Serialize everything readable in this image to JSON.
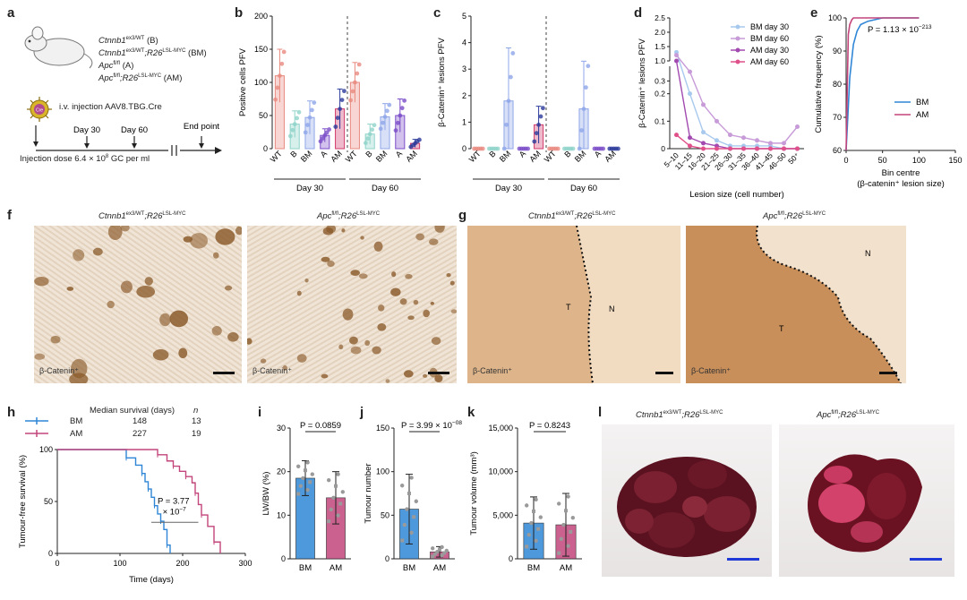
{
  "panel_letters": [
    "a",
    "b",
    "c",
    "d",
    "e",
    "f",
    "g",
    "h",
    "i",
    "j",
    "k",
    "l"
  ],
  "a": {
    "genotypes": [
      {
        "name": "Ctnnb1",
        "sup": "ex3/WT",
        "tag": "(B)"
      },
      {
        "name": "Ctnnb1",
        "sup": "ex3/WT",
        "name2": ";R26",
        "sup2": "LSL-MYC",
        "tag": "(BM)"
      },
      {
        "name": "Apc",
        "sup": "fl/fl",
        "tag": "(A)"
      },
      {
        "name": "Apc",
        "sup": "fl/fl",
        "name2": ";R26",
        "sup2": "LSL-MYC",
        "tag": "(AM)"
      }
    ],
    "injection": "i.v. injection AAV8.TBG.Cre",
    "timeline": [
      "Day 30",
      "Day 60",
      "End point"
    ],
    "dose": "Injection dose 6.4 × 10",
    "dose_exp": "8",
    "dose_unit": " GC per ml",
    "virus_label": "Cre"
  },
  "b": {
    "ylabel": "Positive cells PFV",
    "yticks": [
      "0",
      "50",
      "100",
      "150",
      "200"
    ],
    "groups": [
      "Day 30",
      "Day 60"
    ],
    "categories": [
      "WT",
      "B",
      "BM",
      "A",
      "AM"
    ]
  },
  "c": {
    "ylabel": "β-Catenin⁺ lesions PFV",
    "yticks": [
      "0",
      "1",
      "2",
      "3",
      "4",
      "5"
    ],
    "groups": [
      "Day 30",
      "Day 60"
    ],
    "categories": [
      "WT",
      "B",
      "BM",
      "A",
      "AM"
    ]
  },
  "d": {
    "ylabel": "β-Catenin⁺ lesions PFV",
    "xlabel": "Lesion size (cell number)",
    "yticks_top": [
      "1.0",
      "1.5",
      "2.0",
      "2.5"
    ],
    "yticks_bottom": [
      "0",
      "0.1",
      "0.2",
      "0.3"
    ],
    "xticks": [
      "5–10",
      "11–15",
      "16–20",
      "21–25",
      "26–30",
      "31–35",
      "36–40",
      "41–45",
      "46–50",
      "50⁺"
    ],
    "legend": [
      "BM day 30",
      "BM day 60",
      "AM day 30",
      "AM day 60"
    ]
  },
  "e": {
    "ylabel": "Cumulative frequency (%)",
    "xlabel": "Bin centre",
    "xlabel2": "(β-catenin⁺ lesion size)",
    "pvalue": "P = 1.13 × 10",
    "pvalue_exp": "−213",
    "yticks": [
      "60",
      "70",
      "80",
      "90",
      "100"
    ],
    "xticks": [
      "0",
      "50",
      "100",
      "150"
    ],
    "legend": [
      "BM",
      "AM"
    ]
  },
  "f": {
    "titles": [
      "Ctnnb1",
      "Apc"
    ],
    "sups": [
      "ex3/WT",
      "fl/fl"
    ],
    "suffix": ";R26",
    "suffix_sup": "LSL-MYC",
    "stain": "β-Catenin⁺"
  },
  "g": {
    "titles": [
      "Ctnnb1",
      "Apc"
    ],
    "sups": [
      "ex3/WT",
      "fl/fl"
    ],
    "suffix": ";R26",
    "suffix_sup": "LSL-MYC",
    "stain": "β-Catenin⁺",
    "regions": [
      "T",
      "N",
      "N",
      "T"
    ]
  },
  "h": {
    "header": "Median survival (days)",
    "header_n": "n",
    "rows": [
      {
        "name": "BM",
        "median": "148",
        "n": "13"
      },
      {
        "name": "AM",
        "median": "227",
        "n": "19"
      }
    ],
    "ylabel": "Tumour-free survival (%)",
    "xlabel": "Time (days)",
    "yticks": [
      "0",
      "50",
      "100"
    ],
    "xticks": [
      "0",
      "100",
      "200",
      "300"
    ],
    "pvalue": "P = 3.77",
    "pvalue2": "× 10",
    "pvalue_exp": "−7"
  },
  "i": {
    "ylabel": "LW/BW (%)",
    "pvalue": "P = 0.0859",
    "yticks": [
      "0",
      "10",
      "20",
      "30"
    ],
    "categories": [
      "BM",
      "AM"
    ]
  },
  "j": {
    "ylabel": "Tumour number",
    "pvalue": "P = 3.99 × 10",
    "pvalue_exp": "−08",
    "yticks": [
      "0",
      "50",
      "100",
      "150"
    ],
    "categories": [
      "BM",
      "AM"
    ]
  },
  "k": {
    "ylabel": "Tumour volume (mm³)",
    "pvalue": "P = 0.8243",
    "yticks": [
      "0",
      "5,000",
      "10,000",
      "15,000"
    ],
    "categories": [
      "BM",
      "AM"
    ]
  },
  "l": {
    "titles": [
      "Ctnnb1",
      "Apc"
    ],
    "sups": [
      "ex3/WT",
      "fl/fl"
    ],
    "suffix": ";R26",
    "suffix_sup": "LSL-MYC"
  },
  "colors": {
    "wt": "#e88a80",
    "b": "#8fd3c9",
    "bm": "#8fa6e8",
    "a": "#7a4cc8",
    "am": "#2a3a9a",
    "am_bar": "#d23a6a",
    "blue": "#2f86d6",
    "pink": "#c2457b",
    "ihc_bg": "#eddcc8",
    "ihc_dark": "#8a5a2a"
  },
  "chart_data": [
    {
      "panel": "b",
      "type": "bar",
      "title": "",
      "ylabel": "Positive cells PFV",
      "ylim": [
        0,
        200
      ],
      "categories": [
        "WT",
        "B",
        "BM",
        "A",
        "AM",
        "WT",
        "B",
        "BM",
        "A",
        "AM"
      ],
      "groups": [
        "Day 30",
        "Day 30",
        "Day 30",
        "Day 30",
        "Day 30",
        "Day 60",
        "Day 60",
        "Day 60",
        "Day 60",
        "Day 60"
      ],
      "values": [
        110,
        37,
        47,
        20,
        60,
        100,
        22,
        48,
        50,
        8
      ],
      "errors": [
        40,
        20,
        25,
        10,
        30,
        30,
        15,
        20,
        25,
        6
      ]
    },
    {
      "panel": "c",
      "type": "bar",
      "ylabel": "β-Catenin⁺ lesions PFV",
      "ylim": [
        0,
        5
      ],
      "categories": [
        "WT",
        "B",
        "BM",
        "A",
        "AM",
        "WT",
        "B",
        "BM",
        "A",
        "AM"
      ],
      "groups": [
        "Day 30",
        "Day 30",
        "Day 30",
        "Day 30",
        "Day 30",
        "Day 60",
        "Day 60",
        "Day 60",
        "Day 60",
        "Day 60"
      ],
      "values": [
        0,
        0,
        1.8,
        0,
        0.9,
        0,
        0,
        1.5,
        0,
        0
      ],
      "errors": [
        0,
        0,
        2.0,
        0,
        0.7,
        0,
        0,
        1.8,
        0,
        0
      ]
    },
    {
      "panel": "d",
      "type": "line",
      "xlabel": "Lesion size (cell number)",
      "ylabel": "β-Catenin⁺ lesions PFV",
      "x": [
        "5–10",
        "11–15",
        "16–20",
        "21–25",
        "26–30",
        "31–35",
        "36–40",
        "41–45",
        "46–50",
        "50⁺"
      ],
      "series": [
        {
          "name": "BM day 30",
          "values": [
            1.3,
            0.2,
            0.06,
            0.03,
            0.01,
            0.01,
            0.01,
            0.01,
            0,
            0
          ]
        },
        {
          "name": "BM day 60",
          "values": [
            1.2,
            0.28,
            0.16,
            0.1,
            0.05,
            0.04,
            0.03,
            0.02,
            0.02,
            0.08
          ]
        },
        {
          "name": "AM day 30",
          "values": [
            1.0,
            0.04,
            0.02,
            0.01,
            0,
            0,
            0,
            0,
            0,
            0
          ]
        },
        {
          "name": "AM day 60",
          "values": [
            0.05,
            0.01,
            0,
            0,
            0,
            0,
            0,
            0,
            0,
            0
          ]
        }
      ]
    },
    {
      "panel": "e",
      "type": "line",
      "xlabel": "Bin centre (β-catenin⁺ lesion size)",
      "ylabel": "Cumulative frequency (%)",
      "ylim": [
        60,
        100
      ],
      "xlim": [
        0,
        150
      ],
      "series": [
        {
          "name": "BM",
          "x": [
            0,
            5,
            10,
            15,
            20,
            30,
            50,
            100
          ],
          "values": [
            60,
            82,
            92,
            96,
            98,
            99,
            100,
            100
          ]
        },
        {
          "name": "AM",
          "x": [
            0,
            3,
            5,
            8,
            10,
            20,
            50,
            100
          ],
          "values": [
            60,
            95,
            98,
            99.5,
            100,
            100,
            100,
            100
          ]
        }
      ]
    },
    {
      "panel": "h",
      "type": "line",
      "xlabel": "Time (days)",
      "ylabel": "Tumour-free survival (%)",
      "xlim": [
        0,
        300
      ],
      "ylim": [
        0,
        100
      ],
      "series": [
        {
          "name": "BM",
          "x": [
            0,
            100,
            110,
            125,
            135,
            140,
            145,
            150,
            155,
            160,
            165,
            170,
            175,
            180
          ],
          "values": [
            100,
            100,
            92,
            85,
            77,
            69,
            62,
            54,
            46,
            38,
            31,
            23,
            8,
            0
          ]
        },
        {
          "name": "AM",
          "x": [
            0,
            150,
            160,
            175,
            185,
            195,
            205,
            215,
            220,
            225,
            230,
            240,
            250,
            260
          ],
          "values": [
            100,
            100,
            95,
            89,
            84,
            79,
            74,
            68,
            58,
            47,
            37,
            26,
            11,
            0
          ]
        }
      ]
    },
    {
      "panel": "i",
      "type": "bar",
      "ylabel": "LW/BW (%)",
      "ylim": [
        0,
        30
      ],
      "categories": [
        "BM",
        "AM"
      ],
      "values": [
        18.5,
        14
      ],
      "errors": [
        4,
        6
      ]
    },
    {
      "panel": "j",
      "type": "bar",
      "ylabel": "Tumour number",
      "ylim": [
        0,
        150
      ],
      "categories": [
        "BM",
        "AM"
      ],
      "values": [
        57,
        8
      ],
      "errors": [
        40,
        6
      ]
    },
    {
      "panel": "k",
      "type": "bar",
      "ylabel": "Tumour volume (mm³)",
      "ylim": [
        0,
        15000
      ],
      "categories": [
        "BM",
        "AM"
      ],
      "values": [
        4100,
        3900
      ],
      "errors": [
        3000,
        3600
      ]
    }
  ]
}
